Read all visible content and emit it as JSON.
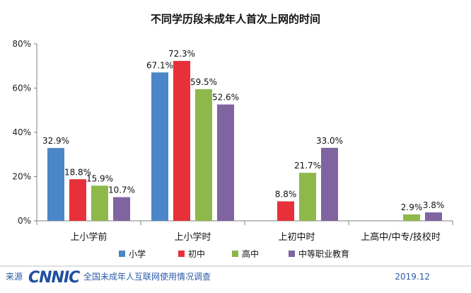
{
  "chart_data": {
    "type": "bar",
    "title": "不同学历段未成年人首次上网的时间",
    "categories": [
      "上小学前",
      "上小学时",
      "上初中时",
      "上高中/中专/技校时"
    ],
    "series": [
      {
        "name": "小学",
        "color": "#4a86c8",
        "values": [
          32.9,
          67.1,
          null,
          null
        ]
      },
      {
        "name": "初中",
        "color": "#e8303a",
        "values": [
          18.8,
          72.3,
          8.8,
          null
        ]
      },
      {
        "name": "高中",
        "color": "#8db84a",
        "values": [
          15.9,
          59.5,
          21.7,
          2.9
        ]
      },
      {
        "name": "中等职业教育",
        "color": "#8064a2",
        "values": [
          10.7,
          52.6,
          33.0,
          3.8
        ]
      }
    ],
    "yTicks": [
      "0%",
      "20%",
      "40%",
      "60%",
      "80%"
    ],
    "ylim": [
      0,
      80
    ],
    "legend_position": "bottom",
    "grid": false
  },
  "footer": {
    "source_label": "来源",
    "logo_text": "CNNIC",
    "report_name": "全国未成年人互联网使用情况调查",
    "date": "2019.12"
  }
}
